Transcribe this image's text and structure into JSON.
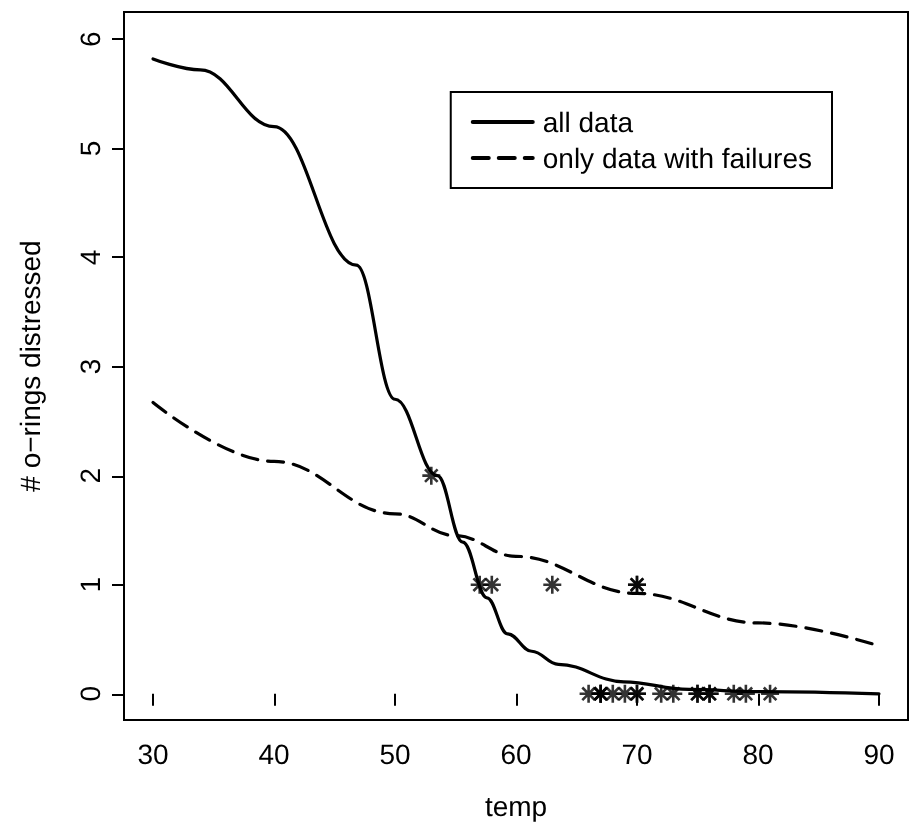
{
  "chart_data": {
    "type": "line",
    "xlabel": "temp",
    "ylabel": "# o−rings distressed",
    "xlim": [
      27.6,
      92.4
    ],
    "ylim": [
      -0.24,
      6.25
    ],
    "xticks": [
      30,
      40,
      50,
      60,
      70,
      80,
      90
    ],
    "yticks": [
      0,
      1,
      2,
      3,
      4,
      5,
      6
    ],
    "grid": false,
    "legend": "top right",
    "series": [
      {
        "name": "all data",
        "color": "#000000",
        "line_style": "solid",
        "marker": "none",
        "x": [
          30,
          33.9,
          40,
          46.8,
          50,
          53.5,
          55.6,
          57.6,
          59.3,
          61.3,
          63.5,
          68.9,
          74.3,
          80,
          90
        ],
        "values": [
          5.82,
          5.72,
          5.2,
          3.93,
          2.7,
          2.0,
          1.39,
          0.88,
          0.55,
          0.39,
          0.27,
          0.11,
          0.04,
          0.02,
          0.0
        ]
      },
      {
        "name": "only data with failures",
        "color": "#000000",
        "line_style": "dashed",
        "marker": "none",
        "x": [
          30,
          40,
          50,
          55,
          60,
          70,
          80,
          90
        ],
        "values": [
          2.67,
          2.13,
          1.65,
          1.45,
          1.26,
          0.92,
          0.65,
          0.44
        ]
      },
      {
        "type": "scatter",
        "color": "#000000",
        "marker": "cross",
        "x": [
          53,
          57,
          58,
          63,
          70,
          70,
          66,
          67,
          67,
          67,
          68,
          69,
          70,
          70,
          72,
          73,
          75,
          75,
          76,
          76,
          78,
          79,
          81
        ],
        "values": [
          2,
          1,
          1,
          1,
          1,
          1,
          0,
          0,
          0,
          0,
          0,
          0,
          0,
          0,
          0,
          0,
          0,
          0,
          0,
          0,
          0,
          0,
          0
        ]
      }
    ]
  }
}
